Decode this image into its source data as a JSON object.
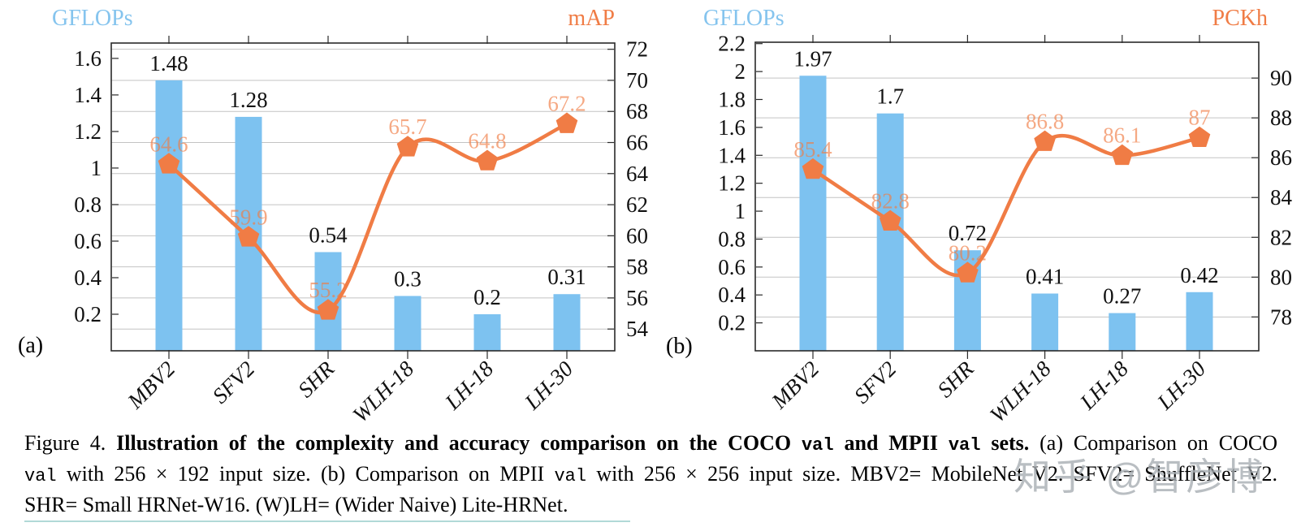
{
  "watermark": "知乎 @智彦博",
  "colors": {
    "bar_blue": "#7dc2f0",
    "header_blue": "#85c4ee",
    "line_orange": "#f07c45",
    "label_orange": "rgba(240,124,69,0.66)",
    "bar_label_black": "#111111",
    "grid": "#c3c3c3",
    "axis": "#2a2a2a",
    "tick_text": "#111111",
    "table_rule_teal": "rgba(100,180,175,0.5)"
  },
  "chart_data": [
    {
      "id": "a",
      "type": "bar+line",
      "panel_label": "(a)",
      "categories": [
        "MBV2",
        "SFV2",
        "SHR",
        "WLH-18",
        "LH-18",
        "LH-30"
      ],
      "bar_series": {
        "name": "GFLOPs",
        "axis": "left",
        "values": [
          1.48,
          1.28,
          0.54,
          0.3,
          0.2,
          0.31
        ],
        "labels": [
          "1.48",
          "1.28",
          "0.54",
          "0.3",
          "0.2",
          "0.31"
        ]
      },
      "line_series": {
        "name": "mAP",
        "axis": "right",
        "values": [
          64.6,
          59.9,
          55.2,
          65.7,
          64.8,
          67.2
        ],
        "labels": [
          "64.6",
          "59.9",
          "55.2",
          "65.7",
          "64.8",
          "67.2"
        ]
      },
      "left_axis": {
        "label": "GFLOPs",
        "ticks": [
          "0.2",
          "0.4",
          "0.6",
          "0.8",
          "1",
          "1.2",
          "1.4",
          "1.6"
        ],
        "range": [
          0,
          1.684
        ]
      },
      "right_axis": {
        "label": "mAP",
        "ticks": [
          "54",
          "56",
          "58",
          "60",
          "62",
          "64",
          "66",
          "68",
          "70",
          "72"
        ],
        "range": [
          52.6,
          72.4
        ]
      },
      "grid": "horizontal-at-right-ticks",
      "legend": "none",
      "marker": "pentagon"
    },
    {
      "id": "b",
      "type": "bar+line",
      "panel_label": "(b)",
      "categories": [
        "MBV2",
        "SFV2",
        "SHR",
        "WLH-18",
        "LH-18",
        "LH-30"
      ],
      "bar_series": {
        "name": "GFLOPs",
        "axis": "left",
        "values": [
          1.97,
          1.7,
          0.72,
          0.41,
          0.27,
          0.42
        ],
        "labels": [
          "1.97",
          "1.7",
          "0.72",
          "0.41",
          "0.27",
          "0.42"
        ]
      },
      "line_series": {
        "name": "PCKh",
        "axis": "right",
        "values": [
          85.4,
          82.8,
          80.2,
          86.8,
          86.1,
          87
        ],
        "labels": [
          "85.4",
          "82.8",
          "80.2",
          "86.8",
          "86.1",
          "87"
        ]
      },
      "left_axis": {
        "label": "GFLOPs",
        "ticks": [
          "0.2",
          "0.4",
          "0.6",
          "0.8",
          "1",
          "1.2",
          "1.4",
          "1.6",
          "1.8",
          "2",
          "2.2"
        ],
        "range": [
          0,
          2.21
        ]
      },
      "right_axis": {
        "label": "PCKh",
        "ticks": [
          "78",
          "80",
          "82",
          "84",
          "86",
          "88",
          "90"
        ],
        "range": [
          76.3,
          91.8
        ]
      },
      "grid": "horizontal-at-right-ticks",
      "legend": "none",
      "marker": "pentagon"
    }
  ],
  "caption": {
    "lines": [
      {
        "justify": true,
        "segments": [
          {
            "t": "Figure 4. ",
            "s": "n"
          },
          {
            "t": "Illustration of the complexity and accuracy comparison on the COCO ",
            "s": "b"
          },
          {
            "t": "val",
            "s": "bm"
          },
          {
            "t": " and MPII ",
            "s": "b"
          },
          {
            "t": "val",
            "s": "bm"
          },
          {
            "t": " sets.",
            "s": "b"
          },
          {
            "t": " (a) Comparison on COCO",
            "s": "n"
          }
        ]
      },
      {
        "justify": true,
        "segments": [
          {
            "t": "val",
            "s": "m"
          },
          {
            "t": " with 256 × 192 input size. (b) Comparison on MPII ",
            "s": "n"
          },
          {
            "t": "val",
            "s": "m"
          },
          {
            "t": " with 256 × 256 input size. MBV2= MobileNet V2. SFV2= ShuffleNet V2.",
            "s": "n"
          }
        ]
      },
      {
        "justify": false,
        "segments": [
          {
            "t": "SHR= Small HRNet-W16. (W)LH= (Wider Naive) Lite-HRNet.",
            "s": "n"
          }
        ]
      }
    ]
  }
}
